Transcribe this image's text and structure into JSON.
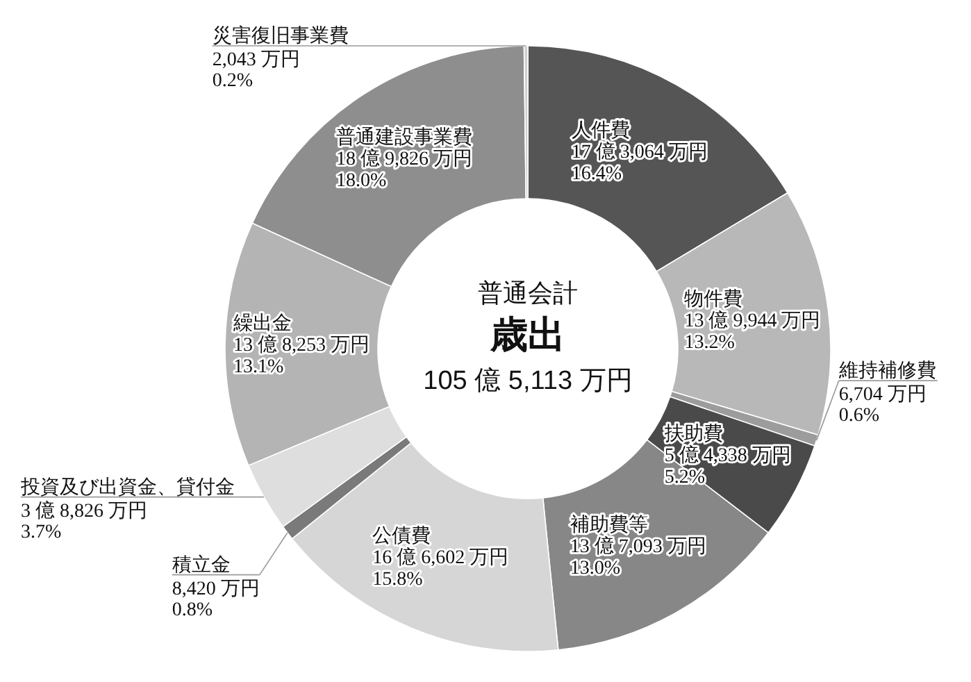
{
  "chart_data": {
    "type": "donut",
    "subtitle": "普通会計",
    "title": "歳出",
    "annotations": [
      "105 億 5,113 万円"
    ],
    "categories": [
      "人件費",
      "物件費",
      "維持補修費",
      "扶助費",
      "補助費等",
      "公債費",
      "積立金",
      "投資及び出資金、貸付金",
      "繰出金",
      "普通建設事業費",
      "災害復旧事業費"
    ],
    "values": [
      16.4,
      13.2,
      0.6,
      5.2,
      13.0,
      15.8,
      0.8,
      3.7,
      13.1,
      18.0,
      0.2
    ],
    "colors": [
      "#555555",
      "#b8b8b8",
      "#9c9c9c",
      "#4a4a4a",
      "#878787",
      "#d6d6d6",
      "#7a7a7a",
      "#dedede",
      "#b4b4b4",
      "#8e8e8e",
      "#cfcfcf"
    ],
    "value_labels": [
      "17 億 3,064 万円\n16.4%",
      "13 億 9,944 万円\n13.2%",
      "6,704 万円\n0.6%",
      "5 億 4,338 万円\n5.2%",
      "13 億 7,093 万円\n13.0%",
      "16 億 6,602 万円\n15.8%",
      "8,420 万円\n0.8%",
      "3 億 8,826 万円\n3.7%",
      "13 億 8,253 万円\n13.1%",
      "18 億 9,826 万円\n18.0%",
      "2,043 万円\n0.2%"
    ]
  }
}
